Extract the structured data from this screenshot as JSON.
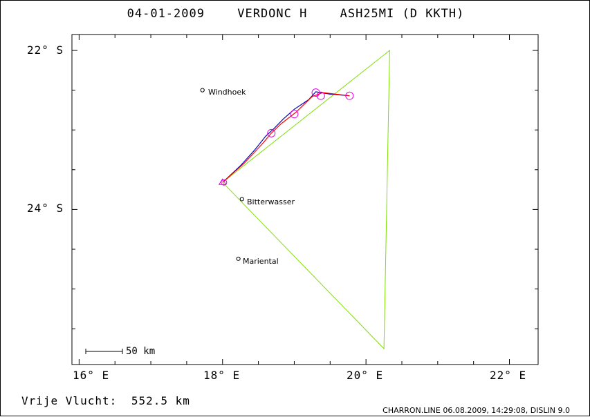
{
  "title": {
    "date": "04-01-2009",
    "pilot": "VERDONC H",
    "aircraft": "ASH25MI (D KKTH)"
  },
  "map": {
    "lat_labels": [
      "22° S",
      "24° S"
    ],
    "lon_labels": [
      "16° E",
      "18° E",
      "20° E",
      "22° E"
    ],
    "lon_range": [
      15.9,
      22.4
    ],
    "lat_range": [
      -21.8,
      -25.95
    ],
    "towns": [
      {
        "name": "Windhoek",
        "lon": 17.72,
        "lat": -22.5
      },
      {
        "name": "Bitterwasser",
        "lon": 18.27,
        "lat": -23.87
      },
      {
        "name": "Mariental",
        "lon": 18.22,
        "lat": -24.62
      }
    ],
    "task_route": [
      [
        18.0,
        -23.66
      ],
      [
        20.33,
        -22.0
      ],
      [
        20.25,
        -25.75
      ],
      [
        18.0,
        -23.66
      ]
    ],
    "track_blue": [
      [
        18.0,
        -23.66
      ],
      [
        18.25,
        -23.45
      ],
      [
        18.45,
        -23.25
      ],
      [
        18.6,
        -23.08
      ],
      [
        18.72,
        -22.98
      ],
      [
        18.85,
        -22.86
      ],
      [
        19.0,
        -22.74
      ],
      [
        19.2,
        -22.62
      ],
      [
        19.3,
        -22.52
      ],
      [
        19.5,
        -22.55
      ],
      [
        19.77,
        -22.57
      ]
    ],
    "track_red": [
      [
        18.0,
        -23.66
      ],
      [
        18.3,
        -23.42
      ],
      [
        18.55,
        -23.18
      ],
      [
        18.68,
        -23.04
      ],
      [
        18.82,
        -22.92
      ],
      [
        19.02,
        -22.78
      ],
      [
        19.25,
        -22.58
      ],
      [
        19.4,
        -22.53
      ],
      [
        19.77,
        -22.57
      ]
    ],
    "thermals": [
      [
        18.02,
        -23.66
      ],
      [
        18.68,
        -23.04
      ],
      [
        19.0,
        -22.8
      ],
      [
        19.3,
        -22.53
      ],
      [
        19.37,
        -22.57
      ],
      [
        19.77,
        -22.57
      ]
    ],
    "scale_label": "50 km"
  },
  "footer": {
    "distance_label": "Vrije Vlucht:",
    "distance_value": "552.5 km",
    "credit": "CHARRON.LINE 06.08.2009, 14:29:08, DISLIN 9.0"
  },
  "colors": {
    "task": "#7fe000",
    "track_blue": "#0000c0",
    "track_red": "#ff0000",
    "thermal": "#e000e0"
  }
}
